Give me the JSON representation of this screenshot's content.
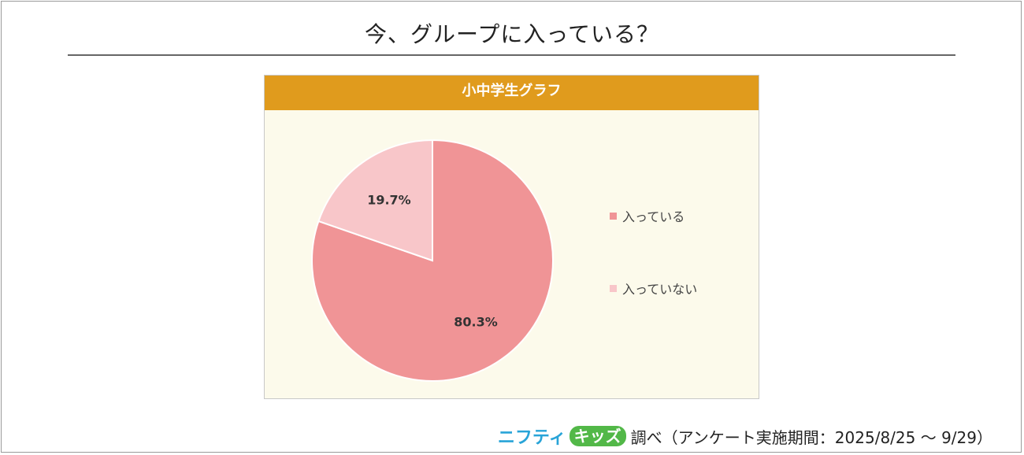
{
  "page": {
    "title": "今、グループに入っている？"
  },
  "chart_data": {
    "type": "pie",
    "title": "小中学生グラフ",
    "slices": [
      {
        "label": "入っている",
        "value": 80.3,
        "display": "80.3%",
        "color": "#f09496"
      },
      {
        "label": "入っていない",
        "value": 19.7,
        "display": "19.7%",
        "color": "#f8c6c9"
      }
    ],
    "start": "12 o'clock, clockwise",
    "legend_position": "right"
  },
  "source": {
    "logo_part1": "ニフティ",
    "logo_part2": "キッズ",
    "text": "調べ（アンケート実施期間：2025/8/25 ～ 9/29）"
  },
  "colors": {
    "header": "#e09b1d",
    "panel_bg": "#fcfaeb"
  }
}
